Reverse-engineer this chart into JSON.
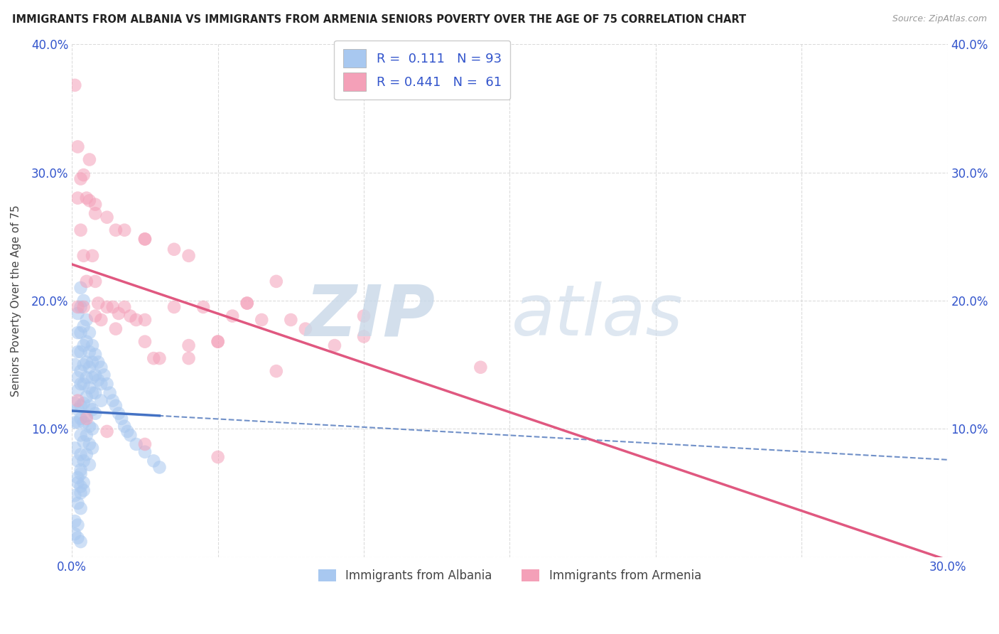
{
  "title": "IMMIGRANTS FROM ALBANIA VS IMMIGRANTS FROM ARMENIA SENIORS POVERTY OVER THE AGE OF 75 CORRELATION CHART",
  "source": "Source: ZipAtlas.com",
  "ylabel": "Seniors Poverty Over the Age of 75",
  "xlim": [
    0.0,
    0.3
  ],
  "ylim": [
    0.0,
    0.4
  ],
  "xticks": [
    0.0,
    0.05,
    0.1,
    0.15,
    0.2,
    0.25,
    0.3
  ],
  "yticks": [
    0.0,
    0.1,
    0.2,
    0.3,
    0.4
  ],
  "albania_color": "#a8c8f0",
  "armenia_color": "#f4a0b8",
  "albania_line_color": "#4472c4",
  "armenia_line_color": "#e05880",
  "dash_line_color": "#7090c8",
  "legend_r_albania": "0.111",
  "legend_n_albania": "93",
  "legend_r_armenia": "0.441",
  "legend_n_armenia": "61",
  "legend_text_color": "#3355cc",
  "albania_x": [
    0.001,
    0.001,
    0.001,
    0.001,
    0.002,
    0.002,
    0.002,
    0.002,
    0.002,
    0.002,
    0.002,
    0.002,
    0.003,
    0.003,
    0.003,
    0.003,
    0.003,
    0.003,
    0.003,
    0.003,
    0.003,
    0.003,
    0.003,
    0.003,
    0.004,
    0.004,
    0.004,
    0.004,
    0.004,
    0.004,
    0.004,
    0.004,
    0.004,
    0.005,
    0.005,
    0.005,
    0.005,
    0.005,
    0.005,
    0.005,
    0.005,
    0.006,
    0.006,
    0.006,
    0.006,
    0.006,
    0.006,
    0.006,
    0.006,
    0.007,
    0.007,
    0.007,
    0.007,
    0.007,
    0.007,
    0.007,
    0.008,
    0.008,
    0.008,
    0.008,
    0.009,
    0.009,
    0.01,
    0.01,
    0.01,
    0.011,
    0.012,
    0.013,
    0.014,
    0.015,
    0.016,
    0.017,
    0.018,
    0.019,
    0.02,
    0.022,
    0.025,
    0.028,
    0.03,
    0.001,
    0.002,
    0.003,
    0.001,
    0.002,
    0.001,
    0.002,
    0.003,
    0.002,
    0.003,
    0.004,
    0.002,
    0.003,
    0.004
  ],
  "albania_y": [
    0.15,
    0.12,
    0.105,
    0.085,
    0.19,
    0.175,
    0.16,
    0.14,
    0.13,
    0.115,
    0.105,
    0.075,
    0.21,
    0.195,
    0.175,
    0.16,
    0.145,
    0.135,
    0.118,
    0.108,
    0.095,
    0.08,
    0.065,
    0.05,
    0.2,
    0.18,
    0.165,
    0.15,
    0.135,
    0.12,
    0.105,
    0.09,
    0.075,
    0.185,
    0.168,
    0.152,
    0.14,
    0.125,
    0.11,
    0.095,
    0.08,
    0.175,
    0.16,
    0.148,
    0.132,
    0.118,
    0.102,
    0.088,
    0.072,
    0.165,
    0.152,
    0.14,
    0.128,
    0.115,
    0.1,
    0.085,
    0.158,
    0.142,
    0.128,
    0.112,
    0.152,
    0.138,
    0.148,
    0.135,
    0.122,
    0.142,
    0.135,
    0.128,
    0.122,
    0.118,
    0.112,
    0.108,
    0.102,
    0.098,
    0.095,
    0.088,
    0.082,
    0.075,
    0.07,
    0.048,
    0.042,
    0.038,
    0.028,
    0.025,
    0.018,
    0.015,
    0.012,
    0.058,
    0.055,
    0.052,
    0.062,
    0.068,
    0.058
  ],
  "armenia_x": [
    0.001,
    0.002,
    0.003,
    0.004,
    0.005,
    0.006,
    0.007,
    0.008,
    0.009,
    0.01,
    0.012,
    0.014,
    0.016,
    0.018,
    0.02,
    0.022,
    0.025,
    0.028,
    0.03,
    0.035,
    0.04,
    0.045,
    0.05,
    0.055,
    0.06,
    0.065,
    0.07,
    0.075,
    0.08,
    0.09,
    0.002,
    0.004,
    0.006,
    0.008,
    0.012,
    0.018,
    0.025,
    0.035,
    0.05,
    0.07,
    0.1,
    0.14,
    0.003,
    0.005,
    0.008,
    0.015,
    0.025,
    0.04,
    0.06,
    0.1,
    0.002,
    0.004,
    0.008,
    0.015,
    0.025,
    0.04,
    0.002,
    0.005,
    0.012,
    0.025,
    0.05
  ],
  "armenia_y": [
    0.368,
    0.28,
    0.255,
    0.235,
    0.215,
    0.31,
    0.235,
    0.215,
    0.198,
    0.185,
    0.195,
    0.195,
    0.19,
    0.195,
    0.188,
    0.185,
    0.185,
    0.155,
    0.155,
    0.195,
    0.165,
    0.195,
    0.168,
    0.188,
    0.198,
    0.185,
    0.145,
    0.185,
    0.178,
    0.165,
    0.32,
    0.298,
    0.278,
    0.275,
    0.265,
    0.255,
    0.248,
    0.24,
    0.168,
    0.215,
    0.188,
    0.148,
    0.295,
    0.28,
    0.268,
    0.255,
    0.248,
    0.235,
    0.198,
    0.172,
    0.195,
    0.195,
    0.188,
    0.178,
    0.168,
    0.155,
    0.122,
    0.108,
    0.098,
    0.088,
    0.078
  ]
}
